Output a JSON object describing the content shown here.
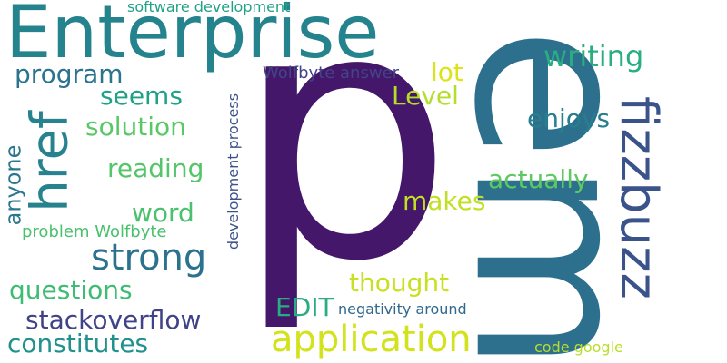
{
  "words": [
    {
      "id": "p",
      "text": "p",
      "color": "#45176a"
    },
    {
      "id": "em",
      "text": "em",
      "color": "#2d708e"
    },
    {
      "id": "enterprise",
      "text": "Enterprise",
      "color": "#25838e"
    },
    {
      "id": "fizzbuzz",
      "text": "fizzbuzz",
      "color": "#3a538b"
    },
    {
      "id": "href",
      "text": "href",
      "color": "#26828e"
    },
    {
      "id": "application",
      "text": "application",
      "color": "#d2e21b"
    },
    {
      "id": "strong",
      "text": "strong",
      "color": "#2c728e"
    },
    {
      "id": "stackoverflow",
      "text": "stackoverflow",
      "color": "#404387"
    },
    {
      "id": "constitutes",
      "text": "constitutes",
      "color": "#21918c"
    },
    {
      "id": "questions",
      "text": "questions",
      "color": "#3dbc74"
    },
    {
      "id": "program",
      "text": "program",
      "color": "#2c738e"
    },
    {
      "id": "solution",
      "text": "solution",
      "color": "#58c765"
    },
    {
      "id": "reading",
      "text": "reading",
      "color": "#54c568"
    },
    {
      "id": "word",
      "text": "word",
      "color": "#4ac16d"
    },
    {
      "id": "seems",
      "text": "seems",
      "color": "#1fa187"
    },
    {
      "id": "writing",
      "text": "writing",
      "color": "#28ae80"
    },
    {
      "id": "enjoys",
      "text": "enjoys",
      "color": "#277f8e"
    },
    {
      "id": "actually",
      "text": "actually",
      "color": "#5ec962"
    },
    {
      "id": "makes",
      "text": "makes",
      "color": "#c2df23"
    },
    {
      "id": "thought",
      "text": "thought",
      "color": "#c8e020"
    },
    {
      "id": "lot",
      "text": "lot",
      "color": "#dde318"
    },
    {
      "id": "level",
      "text": "Level",
      "color": "#b5de2b"
    },
    {
      "id": "edit",
      "text": "EDIT",
      "color": "#27ad81"
    },
    {
      "id": "anyone",
      "text": "anyone",
      "color": "#2a778e"
    },
    {
      "id": "problem-wolfbyte",
      "text": "problem Wolfbyte",
      "color": "#4ac16d"
    },
    {
      "id": "wolfbyte-answer",
      "text": "Wolfbyte answer",
      "color": "#414487"
    },
    {
      "id": "software-development",
      "text": "software development",
      "color": "#1fa187"
    },
    {
      "id": "development-process",
      "text": "development process",
      "color": "#3b528b"
    },
    {
      "id": "negativity-around",
      "text": "negativity around",
      "color": "#31688e"
    },
    {
      "id": "code-google",
      "text": "code google",
      "color": "#b8de29"
    }
  ]
}
